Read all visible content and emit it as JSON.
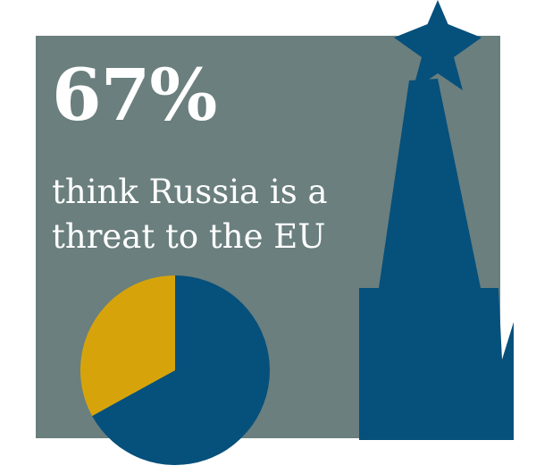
{
  "infographic": {
    "headline": "67%",
    "subtext_line1": "think Russia is a",
    "subtext_line2": "threat to the EU"
  },
  "colors": {
    "panel": "#6a7f7e",
    "primary": "#06507c",
    "accent": "#d6a40a",
    "text": "#ffffff"
  },
  "decoration": {
    "icon": "kremlin-tower-with-star-icon"
  },
  "chart_data": {
    "type": "pie",
    "title": "",
    "slices": [
      {
        "value": 67,
        "color": "#06507c"
      },
      {
        "value": 33,
        "color": "#d6a40a"
      }
    ]
  }
}
